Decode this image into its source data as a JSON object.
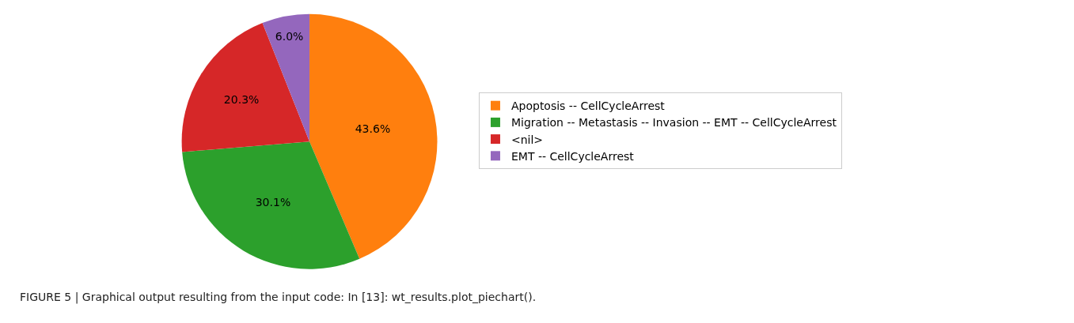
{
  "chart_data": {
    "type": "pie",
    "categories": [
      "Apoptosis -- CellCycleArrest",
      "Migration -- Metastasis -- Invasion -- EMT -- CellCycleArrest",
      "<nil>",
      "EMT -- CellCycleArrest"
    ],
    "values": [
      43.6,
      30.1,
      20.3,
      6.0
    ],
    "value_labels": [
      "43.6%",
      "30.1%",
      "20.3%",
      "6.0%"
    ],
    "colors": [
      "#ff7f0e",
      "#2ca02c",
      "#d62728",
      "#9467bd"
    ],
    "legend": "right",
    "annotations": [
      "FIGURE 5 | Graphical output resulting from the input code: In [13]: wt_results.plot_piechart()."
    ]
  }
}
